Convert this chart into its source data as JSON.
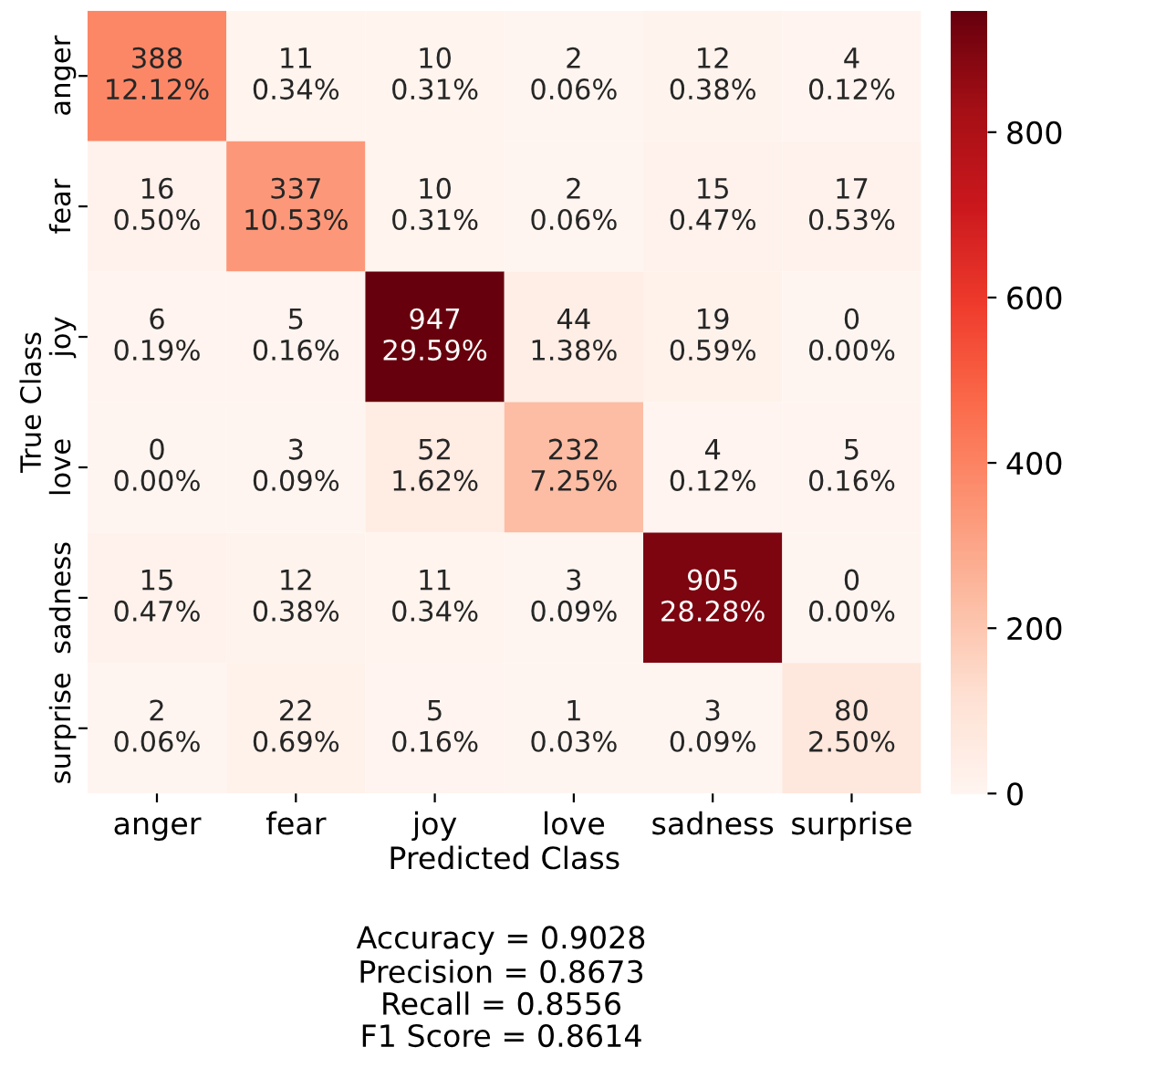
{
  "chart_data": {
    "type": "heatmap",
    "xlabel": "Predicted Class",
    "ylabel": "True Class",
    "categories": [
      "anger",
      "fear",
      "joy",
      "love",
      "sadness",
      "surprise"
    ],
    "y_categories": [
      "anger",
      "fear",
      "joy",
      "love",
      "sadness",
      "surprise"
    ],
    "cells": [
      [
        388,
        11,
        10,
        2,
        12,
        4
      ],
      [
        16,
        337,
        10,
        2,
        15,
        17
      ],
      [
        6,
        5,
        947,
        44,
        19,
        0
      ],
      [
        0,
        3,
        52,
        232,
        4,
        5
      ],
      [
        15,
        12,
        11,
        3,
        905,
        0
      ],
      [
        2,
        22,
        5,
        1,
        3,
        80
      ]
    ],
    "cell_labels": [
      [
        "388\n12.12%",
        "11\n0.34%",
        "10\n0.31%",
        "2\n0.06%",
        "12\n0.38%",
        "4\n0.12%"
      ],
      [
        "16\n0.50%",
        "337\n10.53%",
        "10\n0.31%",
        "2\n0.06%",
        "15\n0.47%",
        "17\n0.53%"
      ],
      [
        "6\n0.19%",
        "5\n0.16%",
        "947\n29.59%",
        "44\n1.38%",
        "19\n0.59%",
        "0\n0.00%"
      ],
      [
        "0\n0.00%",
        "3\n0.09%",
        "52\n1.62%",
        "232\n7.25%",
        "4\n0.12%",
        "5\n0.16%"
      ],
      [
        "15\n0.47%",
        "12\n0.38%",
        "11\n0.34%",
        "3\n0.09%",
        "905\n28.28%",
        "0\n0.00%"
      ],
      [
        "2\n0.06%",
        "22\n0.69%",
        "5\n0.16%",
        "1\n0.03%",
        "3\n0.09%",
        "80\n2.50%"
      ]
    ],
    "clim": [
      0,
      947
    ],
    "cticks": [
      0,
      200,
      400,
      600,
      800
    ],
    "annotations": [
      "Accuracy = 0.9028",
      "Precision = 0.8673",
      "Recall = 0.8556",
      "F1 Score = 0.8614"
    ]
  }
}
